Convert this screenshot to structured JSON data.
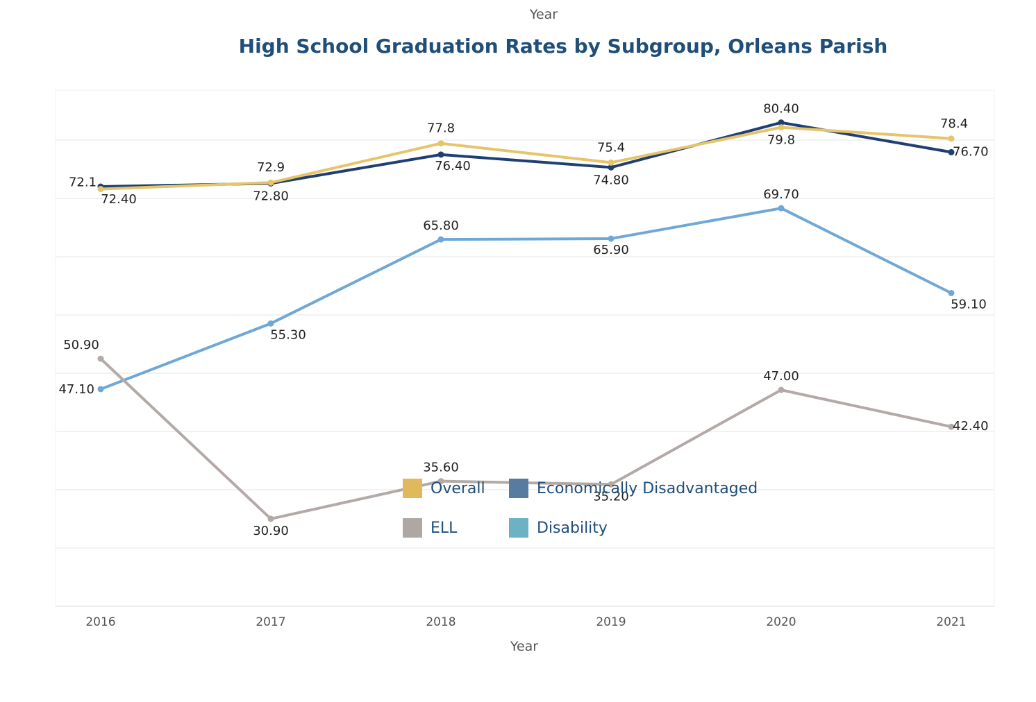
{
  "header": {
    "top_label": "Year",
    "title": "High School Graduation Rates by Subgroup, Orleans Parish"
  },
  "chart_data": {
    "type": "line",
    "title": "High School Graduation Rates by Subgroup, Orleans Parish",
    "xlabel": "Year",
    "ylabel": "",
    "categories": [
      "2016",
      "2017",
      "2018",
      "2019",
      "2020",
      "2021"
    ],
    "ylim": [
      20,
      85
    ],
    "grid": true,
    "legend_position": "center",
    "series": [
      {
        "name": "Overall",
        "color": "#e6c46a",
        "values": [
          72.1,
          72.9,
          77.8,
          75.4,
          79.8,
          78.4
        ],
        "labels": [
          "72.1",
          "72.9",
          "77.8",
          "75.4",
          "79.8",
          "78.4"
        ]
      },
      {
        "name": "Economically Disadvantaged",
        "color": "#1f3f73",
        "values": [
          72.4,
          72.8,
          76.4,
          74.8,
          80.4,
          76.7
        ],
        "labels": [
          "72.40",
          "72.80",
          "76.40",
          "74.80",
          "80.40",
          "76.70"
        ]
      },
      {
        "name": "ELL",
        "color": "#b3aaa8",
        "values": [
          50.9,
          30.9,
          35.6,
          35.2,
          47.0,
          42.4
        ],
        "labels": [
          "50.90",
          "30.90",
          "35.60",
          "35.20",
          "47.00",
          "42.40"
        ]
      },
      {
        "name": "Disability",
        "color": "#6fa8d6",
        "values": [
          47.1,
          55.3,
          65.8,
          65.9,
          69.7,
          59.1
        ],
        "labels": [
          "47.10",
          "55.30",
          "65.80",
          "65.90",
          "69.70",
          "59.10"
        ]
      }
    ]
  },
  "legend": {
    "items": [
      {
        "label": "Overall",
        "color": "#e2b85c"
      },
      {
        "label": "Economically Disadvantaged",
        "color": "#587ba0"
      },
      {
        "label": "ELL",
        "color": "#aea7a4"
      },
      {
        "label": "Disability",
        "color": "#6cb2c4"
      }
    ]
  }
}
